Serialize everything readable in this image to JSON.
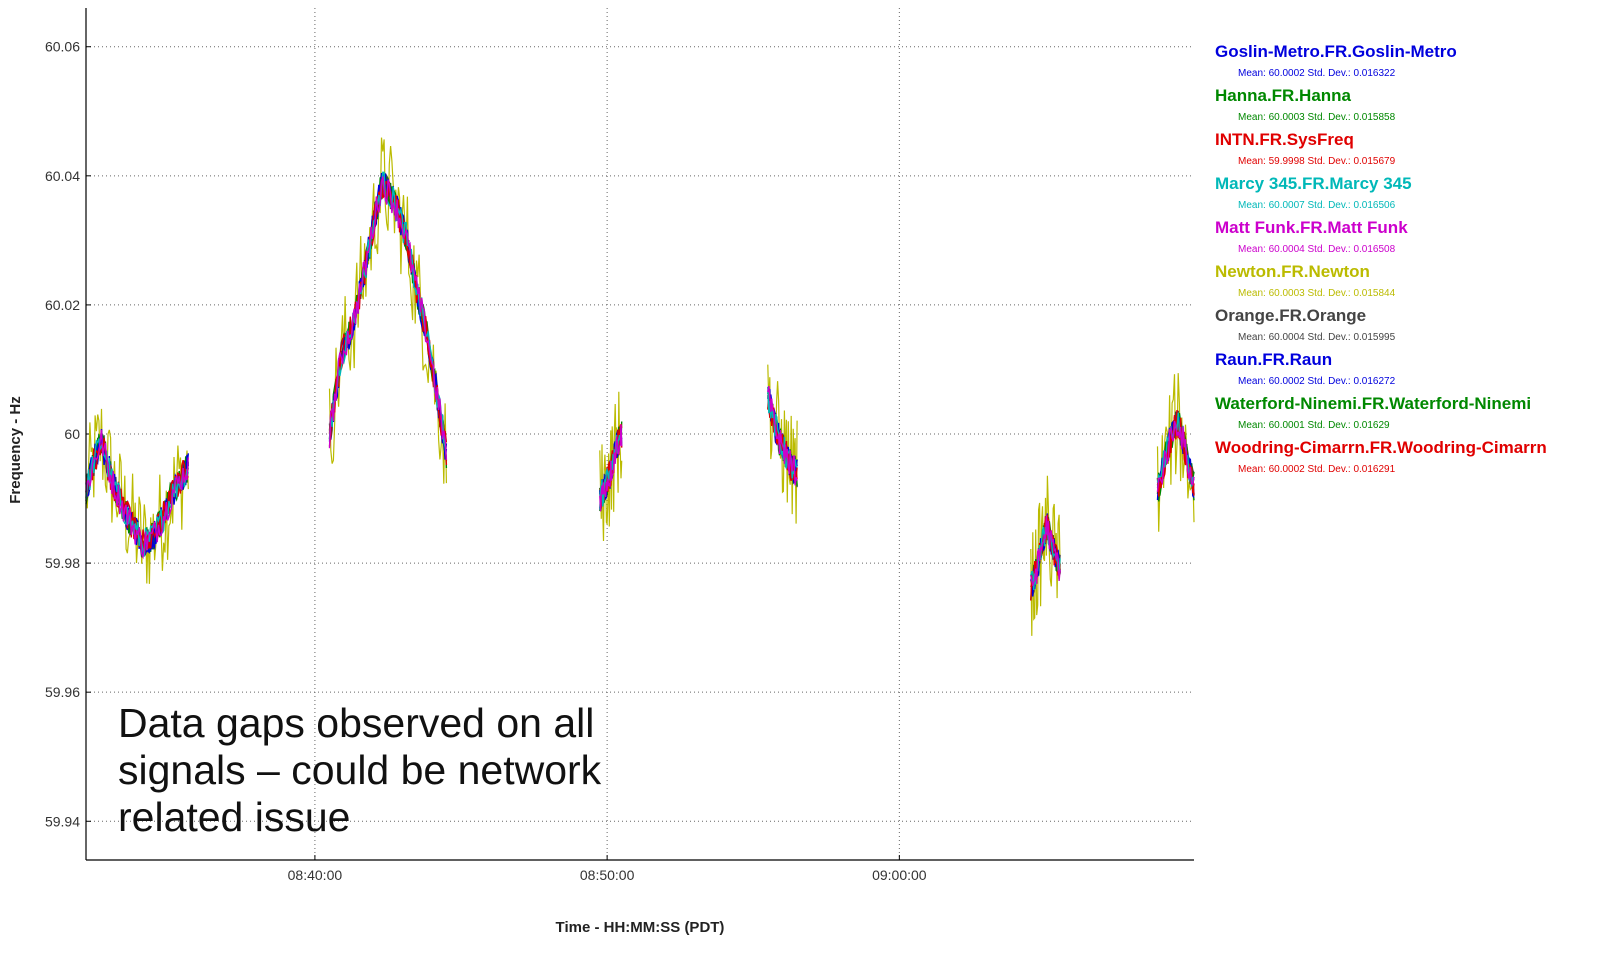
{
  "chart_data": {
    "type": "line",
    "title": "",
    "xlabel": "Time - HH:MM:SS (PDT)",
    "ylabel": "Frequency - Hz",
    "xlim": [
      "08:32:10",
      "09:10:05"
    ],
    "ylim": [
      59.934,
      60.066
    ],
    "x_ticks": [
      "08:40:00",
      "08:50:00",
      "09:00:00"
    ],
    "y_ticks": [
      "60.06",
      "60.04",
      "60.02",
      "60",
      "59.98",
      "59.96",
      "59.94"
    ],
    "grid": true,
    "legend_position": "right",
    "series": [
      {
        "name": "Goslin-Metro.FR.Goslin-Metro",
        "color": "#0000dd",
        "stats": "Mean: 60.0002   Std. Dev.: 0.016322"
      },
      {
        "name": "Hanna.FR.Hanna",
        "color": "#008800",
        "stats": "Mean: 60.0003   Std. Dev.: 0.015858"
      },
      {
        "name": "INTN.FR.SysFreq",
        "color": "#e00000",
        "stats": "Mean: 59.9998   Std. Dev.: 0.015679"
      },
      {
        "name": "Marcy 345.FR.Marcy 345",
        "color": "#00b8b8",
        "stats": "Mean: 60.0007   Std. Dev.: 0.016506"
      },
      {
        "name": "Matt Funk.FR.Matt Funk",
        "color": "#cc00cc",
        "stats": "Mean: 60.0004   Std. Dev.: 0.016508"
      },
      {
        "name": "Newton.FR.Newton",
        "color": "#bbbb00",
        "stats": "Mean: 60.0003   Std. Dev.: 0.015844"
      },
      {
        "name": "Orange.FR.Orange",
        "color": "#444444",
        "stats": "Mean: 60.0004   Std. Dev.: 0.015995"
      },
      {
        "name": "Raun.FR.Raun",
        "color": "#0000dd",
        "stats": "Mean: 60.0002   Std. Dev.: 0.016272"
      },
      {
        "name": "Waterford-Ninemi.FR.Waterford-Ninemi",
        "color": "#008800",
        "stats": "Mean: 60.0001   Std. Dev.: 0.01629"
      },
      {
        "name": "Woodring-Cimarrn.FR.Woodring-Cimarrn",
        "color": "#e00000",
        "stats": "Mean: 60.0002   Std. Dev.: 0.016291"
      }
    ],
    "segments": [
      {
        "x_start": "08:32:10",
        "x_end": "08:35:40",
        "points": [
          [
            0,
            59.991
          ],
          [
            0.08,
            59.996
          ],
          [
            0.15,
            59.999
          ],
          [
            0.25,
            59.993
          ],
          [
            0.35,
            59.989
          ],
          [
            0.45,
            59.986
          ],
          [
            0.55,
            59.983
          ],
          [
            0.65,
            59.984
          ],
          [
            0.75,
            59.987
          ],
          [
            0.85,
            59.991
          ],
          [
            1,
            59.995
          ]
        ]
      },
      {
        "x_start": "08:40:30",
        "x_end": "08:44:30",
        "points": [
          [
            0,
            60.0
          ],
          [
            0.1,
            60.012
          ],
          [
            0.2,
            60.017
          ],
          [
            0.32,
            60.027
          ],
          [
            0.38,
            60.033
          ],
          [
            0.45,
            60.039
          ],
          [
            0.55,
            60.036
          ],
          [
            0.65,
            60.031
          ],
          [
            0.75,
            60.022
          ],
          [
            0.85,
            60.014
          ],
          [
            1,
            59.997
          ]
        ]
      },
      {
        "x_start": "08:49:45",
        "x_end": "08:50:30",
        "points": [
          [
            0,
            59.99
          ],
          [
            0.25,
            59.992
          ],
          [
            0.5,
            59.994
          ],
          [
            0.75,
            59.998
          ],
          [
            1,
            60.0
          ]
        ]
      },
      {
        "x_start": "08:55:30",
        "x_end": "08:56:30",
        "points": [
          [
            0,
            60.006
          ],
          [
            0.2,
            60.002
          ],
          [
            0.4,
            59.999
          ],
          [
            0.6,
            59.997
          ],
          [
            0.8,
            59.995
          ],
          [
            1,
            59.994
          ]
        ]
      },
      {
        "x_start": "09:04:30",
        "x_end": "09:05:30",
        "points": [
          [
            0,
            59.976
          ],
          [
            0.2,
            59.979
          ],
          [
            0.4,
            59.983
          ],
          [
            0.55,
            59.986
          ],
          [
            0.7,
            59.983
          ],
          [
            0.85,
            59.981
          ],
          [
            1,
            59.979
          ]
        ]
      },
      {
        "x_start": "09:08:50",
        "x_end": "09:10:05",
        "points": [
          [
            0,
            59.991
          ],
          [
            0.2,
            59.996
          ],
          [
            0.4,
            60.0
          ],
          [
            0.55,
            60.002
          ],
          [
            0.7,
            59.999
          ],
          [
            0.85,
            59.995
          ],
          [
            1,
            59.992
          ]
        ]
      }
    ]
  },
  "annotation": {
    "lines": [
      "Data gaps observed on all",
      "signals – could be network",
      "related issue"
    ]
  }
}
